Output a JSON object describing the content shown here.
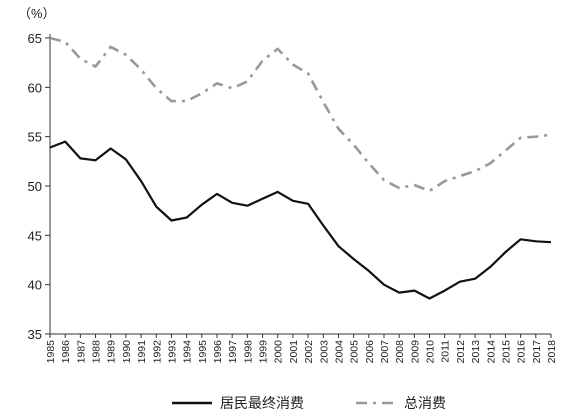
{
  "chart_data": {
    "type": "line",
    "y_unit_label": "（%）",
    "ylim": [
      35,
      65
    ],
    "yticks": [
      35,
      40,
      45,
      50,
      55,
      60,
      65
    ],
    "grid": false,
    "legend_position": "bottom",
    "x": [
      "1985",
      "1986",
      "1987",
      "1988",
      "1989",
      "1990",
      "1991",
      "1992",
      "1993",
      "1994",
      "1995",
      "1996",
      "1997",
      "1998",
      "1999",
      "2000",
      "2001",
      "2002",
      "2003",
      "2004",
      "2005",
      "2006",
      "2007",
      "2008",
      "2009",
      "2010",
      "2011",
      "2012",
      "2013",
      "2014",
      "2015",
      "2016",
      "2017",
      "2018"
    ],
    "series": [
      {
        "name": "居民最终消费",
        "style": "solid",
        "color": "#111111",
        "values": [
          53.9,
          54.5,
          52.8,
          52.6,
          53.8,
          52.7,
          50.5,
          47.9,
          46.5,
          46.8,
          48.1,
          49.2,
          48.3,
          48.0,
          48.7,
          49.4,
          48.5,
          48.2,
          46.0,
          43.9,
          42.6,
          41.4,
          40.0,
          39.2,
          39.4,
          38.6,
          39.4,
          40.3,
          40.6,
          41.8,
          43.3,
          44.6,
          44.4,
          44.3
        ]
      },
      {
        "name": "总消费",
        "style": "dashdot",
        "color": "#999999",
        "values": [
          65.0,
          64.6,
          62.9,
          62.1,
          64.1,
          63.3,
          61.8,
          59.9,
          58.6,
          58.6,
          59.4,
          60.4,
          59.9,
          60.6,
          62.7,
          63.9,
          62.3,
          61.4,
          58.5,
          55.8,
          54.2,
          52.3,
          50.6,
          49.8,
          50.1,
          49.5,
          50.5,
          51.0,
          51.5,
          52.3,
          53.6,
          54.9,
          55.0,
          55.2
        ]
      }
    ]
  }
}
